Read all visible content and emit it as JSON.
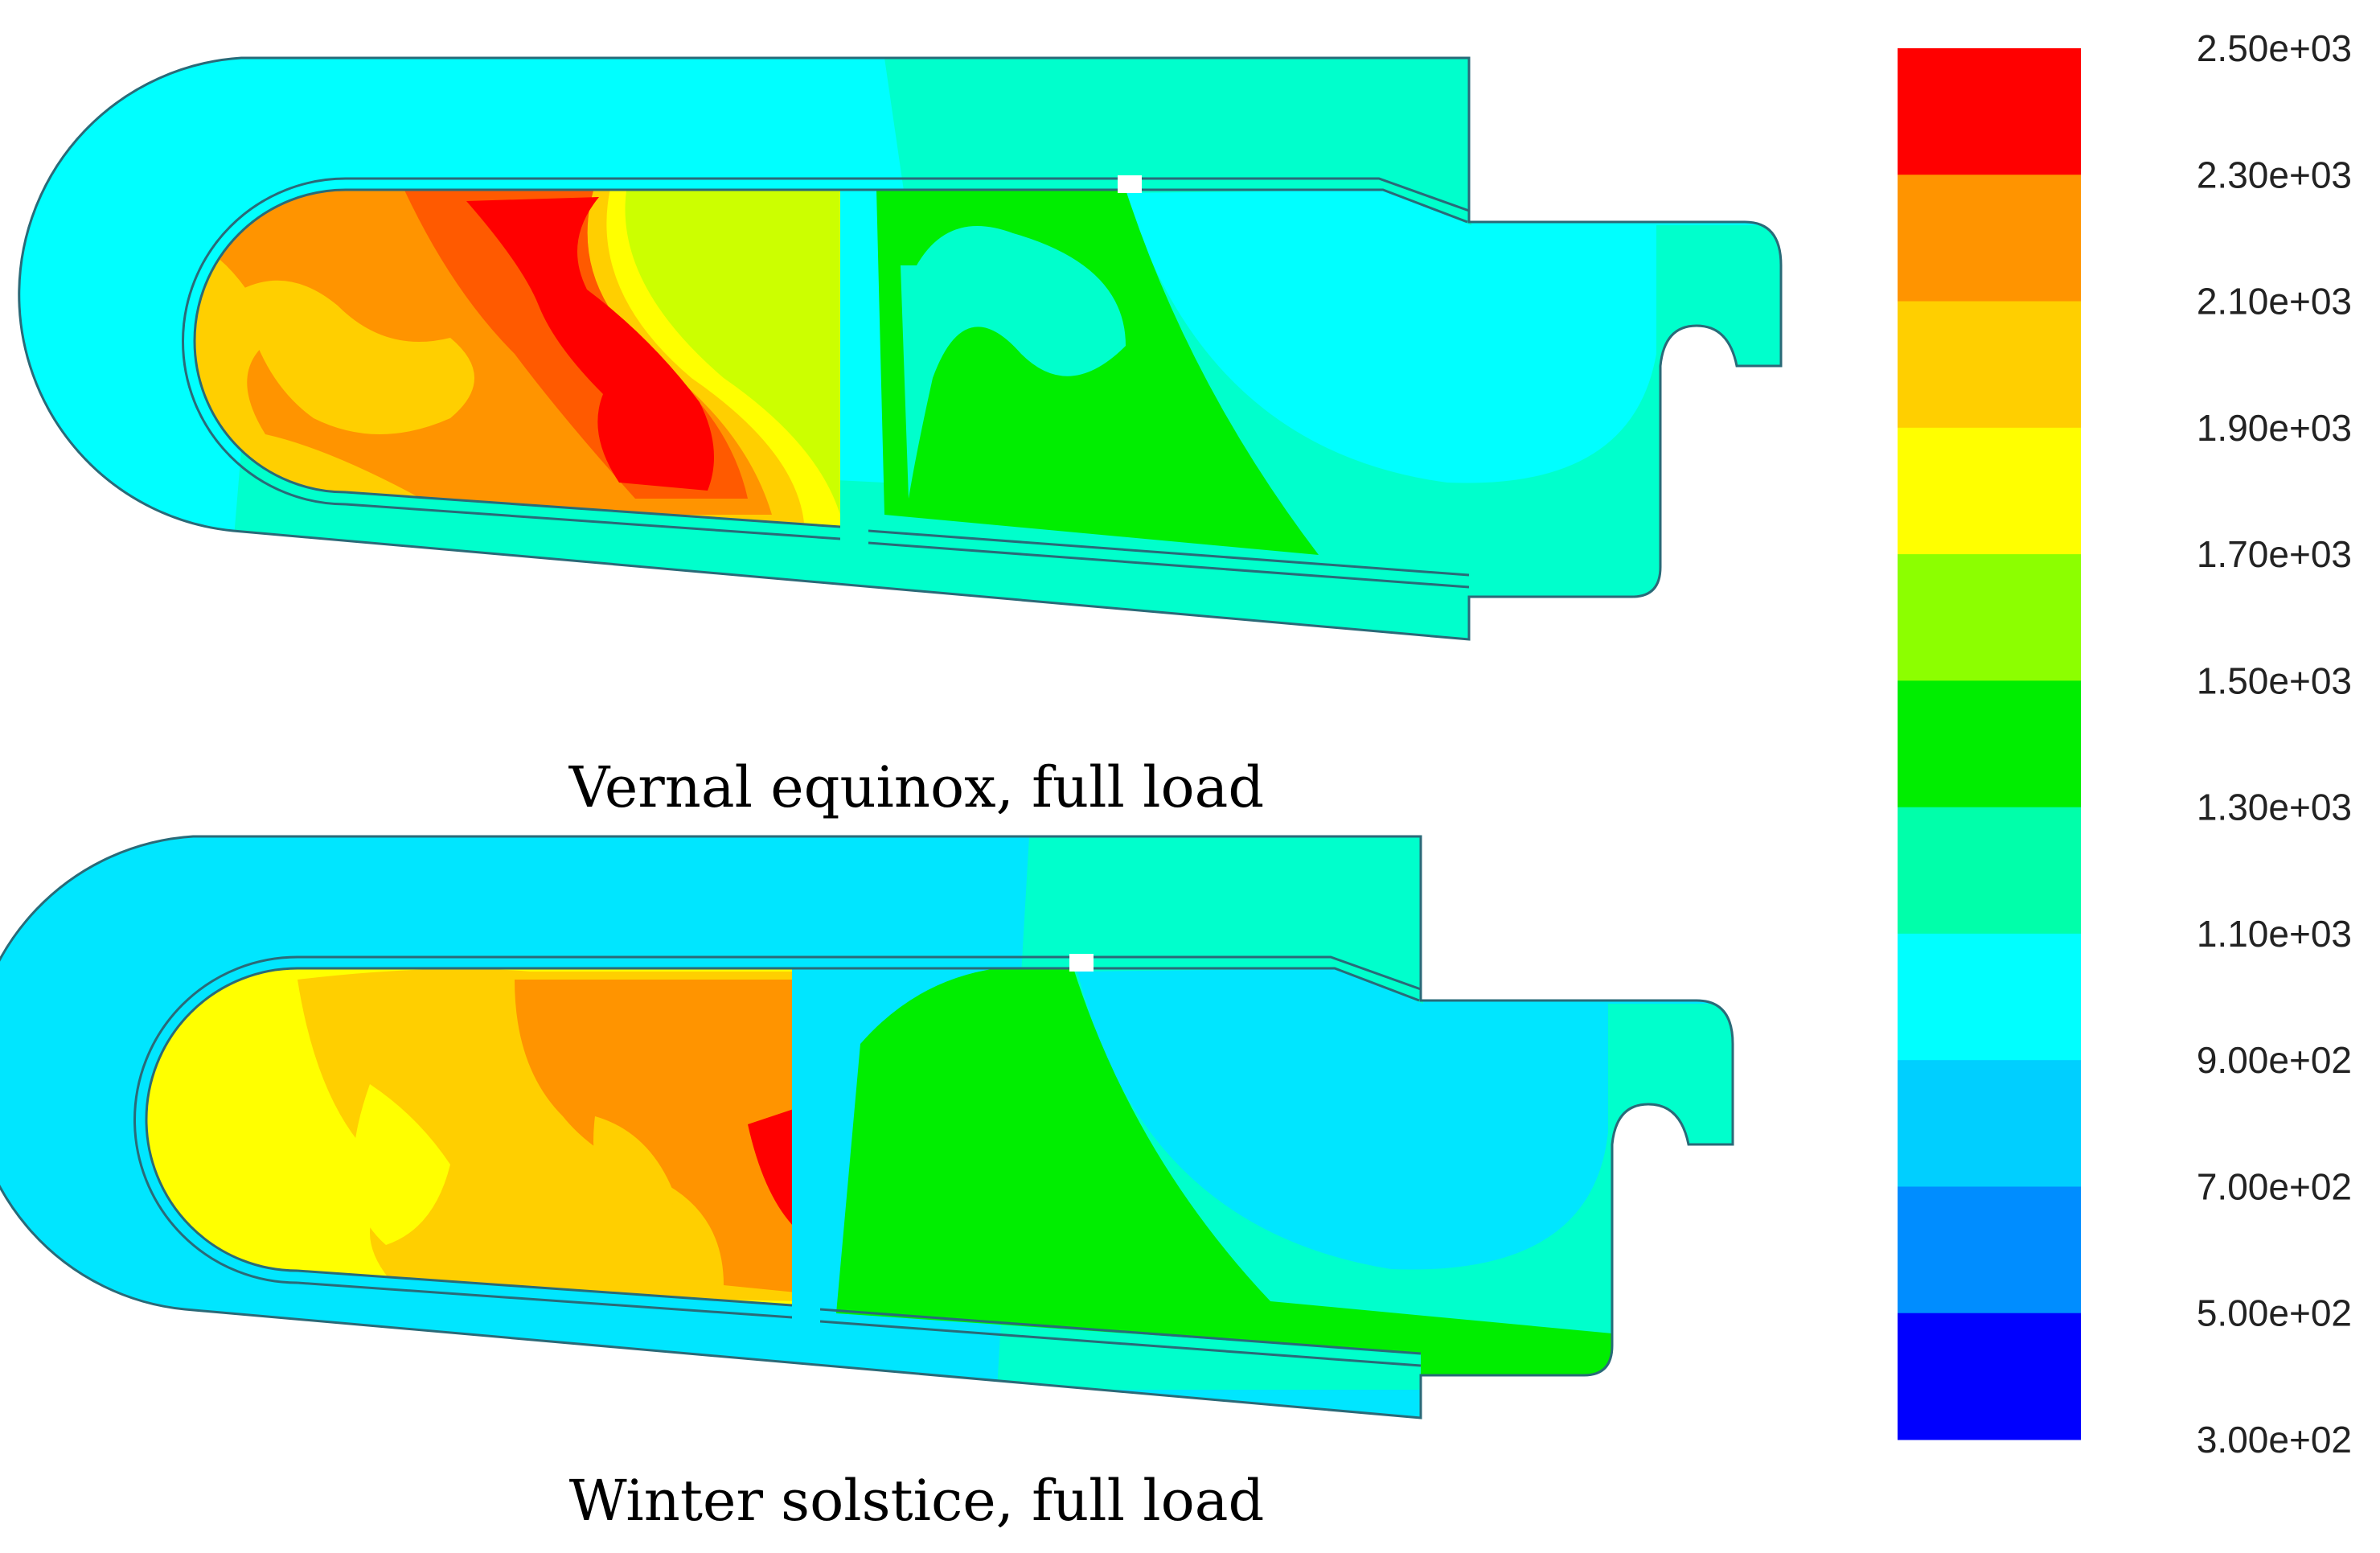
{
  "panels": [
    {
      "caption": "Vernal equinox, full load"
    },
    {
      "caption": "Winter solstice, full load"
    }
  ],
  "colorbar": {
    "labels": [
      "2.50e+03",
      "2.30e+03",
      "2.10e+03",
      "1.90e+03",
      "1.70e+03",
      "1.50e+03",
      "1.30e+03",
      "1.10e+03",
      "9.00e+02",
      "7.00e+02",
      "5.00e+02",
      "3.00e+02"
    ],
    "levels": [
      2500,
      2300,
      2100,
      1900,
      1700,
      1500,
      1300,
      1100,
      900,
      700,
      500,
      300
    ],
    "band_colors": [
      "#ff0000",
      "#ff9400",
      "#ffcf00",
      "#ffff00",
      "#8cff00",
      "#00ee00",
      "#00ffaa",
      "#00ffff",
      "#00cfff",
      "#008dff",
      "#0000ff"
    ]
  },
  "colors": {
    "outline": "#2a6a78",
    "region_outer": "#00ffff",
    "region_mid": "#00ffcc",
    "region_green": "#00ee00",
    "region_lime": "#ccff00",
    "region_yellow": "#ffff00",
    "region_gold": "#ffcf00",
    "region_orange": "#ff9400",
    "region_deep_orange": "#ff5a00",
    "region_red": "#ff0000",
    "region_cool": "#00e6ff"
  }
}
